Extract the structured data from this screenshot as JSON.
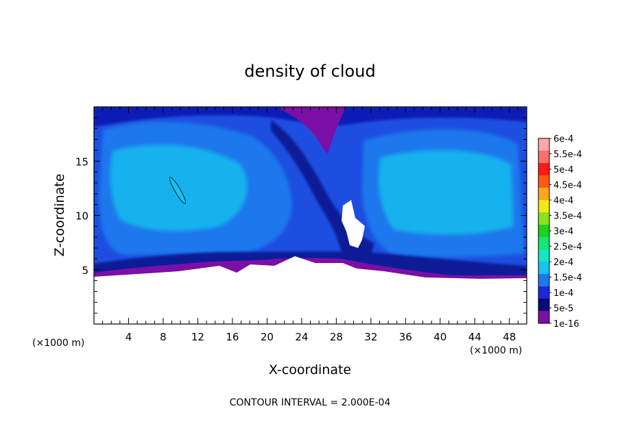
{
  "chart_data": {
    "type": "heatmap",
    "title": "density of cloud",
    "xlabel": "X-coordinate",
    "ylabel": "Z-coordinate",
    "x_unit_left": "(×1000 m)",
    "x_unit_right": "(×1000 m)",
    "xlim": [
      0,
      50
    ],
    "ylim": [
      0,
      20
    ],
    "x_ticks": [
      4,
      8,
      12,
      16,
      20,
      24,
      28,
      32,
      36,
      40,
      44,
      48
    ],
    "x_tick_labels": [
      "4",
      "8",
      "12",
      "16",
      "20",
      "24",
      "28",
      "32",
      "36",
      "40",
      "44",
      "48"
    ],
    "y_ticks": [
      5,
      10,
      15
    ],
    "y_tick_labels": [
      "5",
      "10",
      "15"
    ],
    "footer": "CONTOUR INTERVAL = 2.000E-04",
    "colorbar": {
      "levels": [
        "1e-16",
        "5e-5",
        "1e-4",
        "1.5e-4",
        "2e-4",
        "2.5e-4",
        "3e-4",
        "3.5e-4",
        "4e-4",
        "4.5e-4",
        "5e-4",
        "5.5e-4",
        "6e-4"
      ],
      "colors": [
        "#7b0fa6",
        "#0a0a78",
        "#1a28e0",
        "#1d78ec",
        "#14c4ee",
        "#12e7c0",
        "#13e874",
        "#1ed21e",
        "#88e41e",
        "#f0ea14",
        "#ffa81a",
        "#ff5a14",
        "#ff1a1a",
        "#ff6e6e",
        "#ffa8a8"
      ]
    }
  }
}
